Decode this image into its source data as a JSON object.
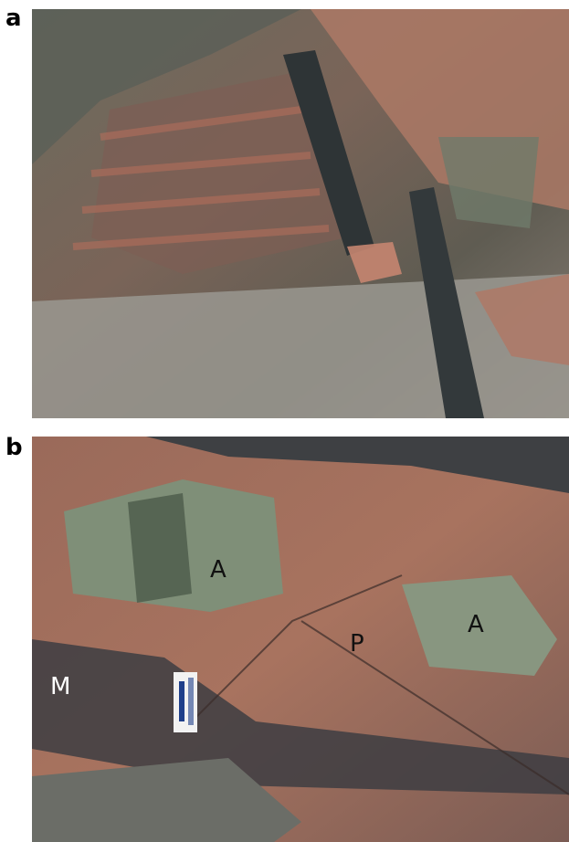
{
  "panels": [
    {
      "label": "a"
    },
    {
      "label": "b",
      "annotations": [
        "A",
        "P",
        "A",
        "M"
      ]
    }
  ]
}
